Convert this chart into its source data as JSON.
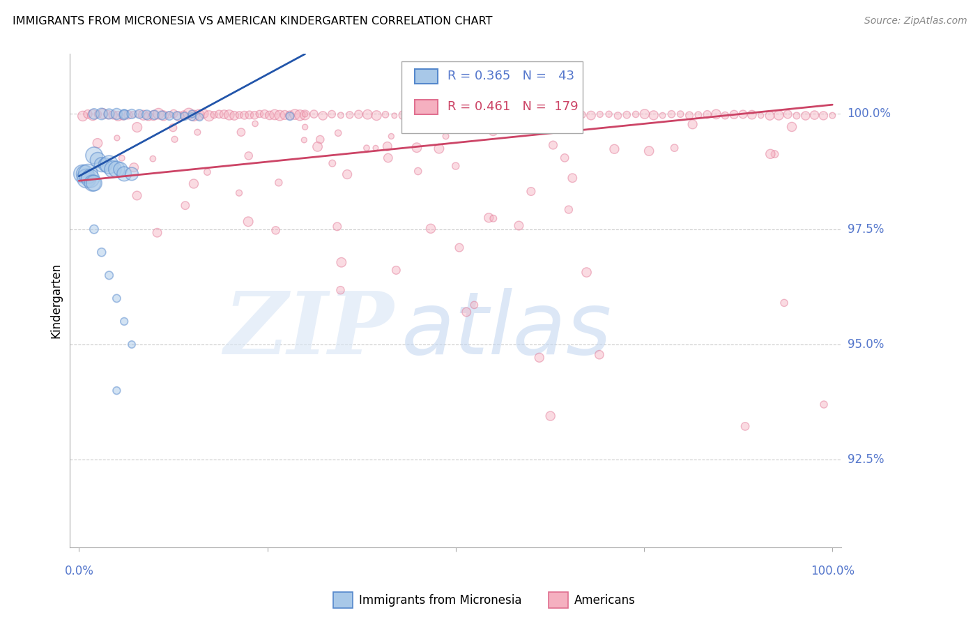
{
  "title": "IMMIGRANTS FROM MICRONESIA VS AMERICAN KINDERGARTEN CORRELATION CHART",
  "source": "Source: ZipAtlas.com",
  "ylabel": "Kindergarten",
  "legend_blue_r": "0.365",
  "legend_blue_n": "43",
  "legend_pink_r": "0.461",
  "legend_pink_n": "179",
  "ytick_vals": [
    0.925,
    0.95,
    0.975,
    1.0
  ],
  "ytick_labels": [
    "92.5%",
    "95.0%",
    "97.5%",
    "100.0%"
  ],
  "ymin": 0.906,
  "ymax": 1.013,
  "xmin": -0.012,
  "xmax": 1.012,
  "blue_face": "#a8c8e8",
  "blue_edge": "#5588cc",
  "blue_line": "#2255aa",
  "pink_face": "#f5b0c0",
  "pink_edge": "#e07090",
  "pink_line": "#cc4466",
  "label_color": "#5577cc",
  "watermark_zip": "#d8e5f5",
  "watermark_atlas": "#c0d5f0",
  "grid_color": "#cccccc",
  "source_color": "#888888",
  "blue_trend_x0": 0.0,
  "blue_trend_x1": 0.3,
  "blue_trend_y0": 0.9865,
  "blue_trend_y1": 1.013,
  "pink_trend_x0": 0.0,
  "pink_trend_x1": 1.0,
  "pink_trend_y0": 0.9855,
  "pink_trend_y1": 1.002
}
